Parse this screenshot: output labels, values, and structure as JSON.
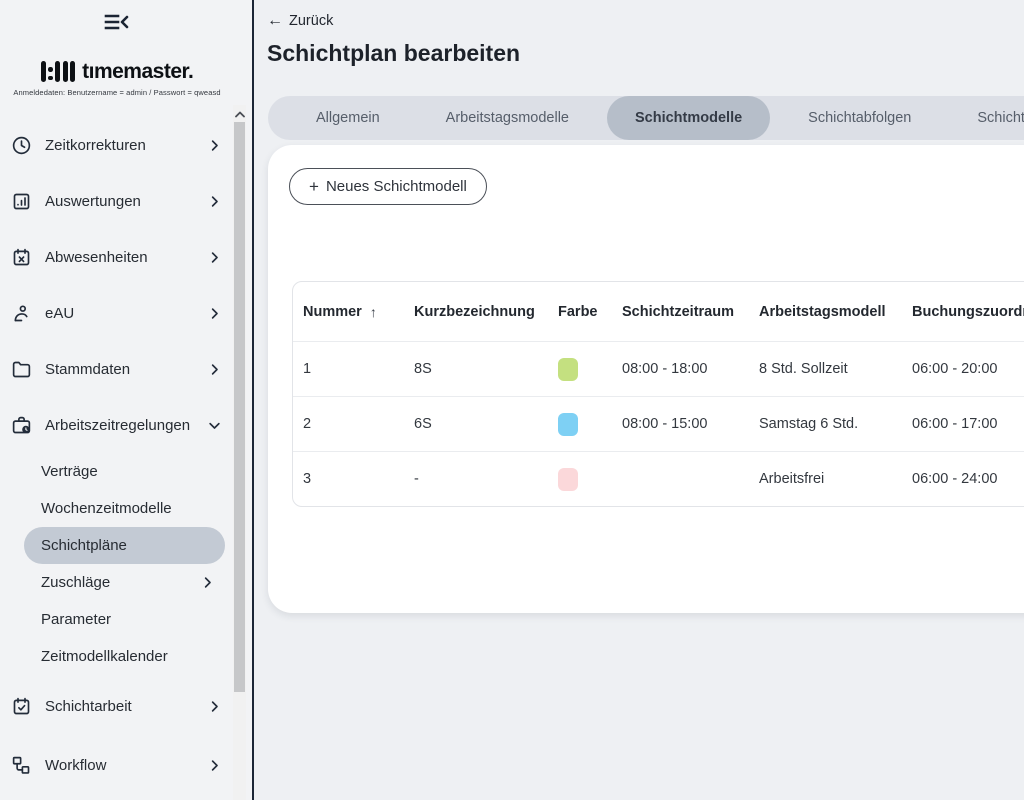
{
  "sidebar": {
    "logo_text": "tımemaster.",
    "logo_tagline": "Anmeldedaten: Benutzername = admin / Passwort = qweasd",
    "items": [
      {
        "label": "Zeitkorrekturen",
        "icon": "clock-icon",
        "chevron": "right"
      },
      {
        "label": "Auswertungen",
        "icon": "bar-chart-icon",
        "chevron": "right"
      },
      {
        "label": "Abwesenheiten",
        "icon": "calendar-x-icon",
        "chevron": "right"
      },
      {
        "label": "eAU",
        "icon": "person-icon",
        "chevron": "right"
      },
      {
        "label": "Stammdaten",
        "icon": "folder-icon",
        "chevron": "right"
      },
      {
        "label": "Arbeitszeitregelungen",
        "icon": "briefcase-clock-icon",
        "chevron": "down",
        "expanded": true,
        "children": [
          {
            "label": "Verträge"
          },
          {
            "label": "Wochenzeitmodelle"
          },
          {
            "label": "Schichtpläne",
            "selected": true
          },
          {
            "label": "Zuschläge",
            "chevron": "right"
          },
          {
            "label": "Parameter"
          },
          {
            "label": "Zeitmodellkalender"
          }
        ]
      },
      {
        "label": "Schichtarbeit",
        "icon": "calendar-check-icon",
        "chevron": "right"
      },
      {
        "label": "Workflow",
        "icon": "workflow-icon",
        "chevron": "right"
      }
    ]
  },
  "header": {
    "back_label": "Zurück",
    "title": "Schichtplan bearbeiten"
  },
  "tabs": [
    {
      "label": "Allgemein",
      "active": false
    },
    {
      "label": "Arbeitstagsmodelle",
      "active": false
    },
    {
      "label": "Schichtmodelle",
      "active": true
    },
    {
      "label": "Schichtabfolgen",
      "active": false
    },
    {
      "label": "Schichtgruppen",
      "active": false
    }
  ],
  "content": {
    "new_button": {
      "plus": "+",
      "label": "Neues Schichtmodell"
    }
  },
  "table": {
    "columns": [
      {
        "label": "Nummer",
        "sorted": "asc"
      },
      {
        "label": "Kurzbezeichnung"
      },
      {
        "label": "Farbe"
      },
      {
        "label": "Schichtzeitraum"
      },
      {
        "label": "Arbeitstagsmodell"
      },
      {
        "label": "Buchungszuordnung"
      }
    ],
    "rows": [
      {
        "nummer": "1",
        "kurzbezeichnung": "8S",
        "farbe_hex": "#c4e080",
        "schichtzeitraum": "08:00 - 18:00",
        "arbeitstagsmodell": "8 Std. Sollzeit",
        "buchungszuordnung": "06:00 - 20:00"
      },
      {
        "nummer": "2",
        "kurzbezeichnung": "6S",
        "farbe_hex": "#7ed0f4",
        "schichtzeitraum": "08:00 - 15:00",
        "arbeitstagsmodell": "Samstag 6 Std.",
        "buchungszuordnung": "06:00 - 17:00"
      },
      {
        "nummer": "3",
        "kurzbezeichnung": "-",
        "farbe_hex": "#fbd8da",
        "schichtzeitraum": "",
        "arbeitstagsmodell": "Arbeitsfrei",
        "buchungszuordnung": "06:00 - 24:00"
      }
    ]
  },
  "colors": {
    "sidebar_divider": "#1b2536",
    "selected_item_bg": "#c3cad4",
    "tab_bar_bg": "#dcdfe6",
    "active_tab_bg": "#b6bec9"
  }
}
